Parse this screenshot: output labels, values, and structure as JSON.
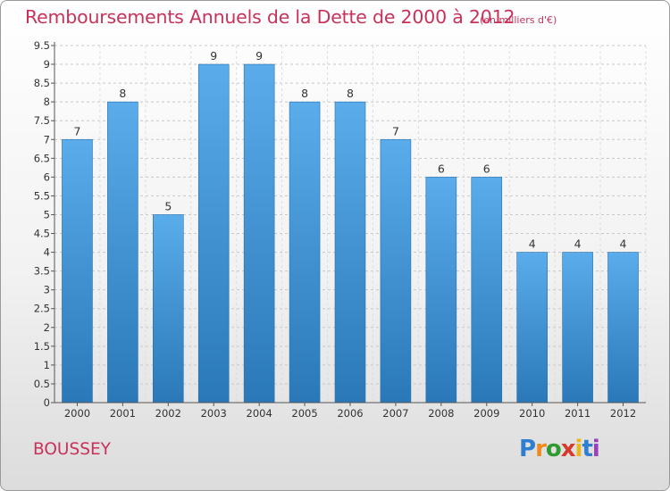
{
  "title": "Remboursements Annuels de la Dette de 2000 à 2012",
  "unit_label": "(en milliers d'€)",
  "place": "BOUSSEY",
  "logo": {
    "letters": [
      "P",
      "r",
      "o",
      "x",
      "i",
      "t",
      "i"
    ],
    "colors": [
      "#2f7fd0",
      "#f08a1c",
      "#2f9a2f",
      "#d63a2a",
      "#e8b81a",
      "#2f7fd0",
      "#9a3fc0"
    ]
  },
  "colors": {
    "bar_light": "#5aaceb",
    "bar_dark": "#2a78b8",
    "title": "#c8325a",
    "grid": "#c8c8c8",
    "axis_text": "#333333"
  },
  "chart_data": {
    "type": "bar",
    "categories": [
      "2000",
      "2001",
      "2002",
      "2003",
      "2004",
      "2005",
      "2006",
      "2007",
      "2008",
      "2009",
      "2010",
      "2011",
      "2012"
    ],
    "values": [
      7,
      8,
      5,
      9,
      9,
      8,
      8,
      7,
      6,
      6,
      4,
      4,
      4
    ],
    "data_labels": [
      "7",
      "8",
      "5",
      "9",
      "9",
      "8",
      "8",
      "7",
      "6",
      "6",
      "4",
      "4",
      "4"
    ],
    "yticks": [
      "0",
      "0.5",
      "1",
      "1.5",
      "2",
      "2.5",
      "3",
      "3.5",
      "4",
      "4.5",
      "5",
      "5.5",
      "6",
      "6.5",
      "7",
      "7.5",
      "8",
      "8.5",
      "9",
      "9.5"
    ],
    "ylim": [
      0,
      9.5
    ],
    "grid": true
  }
}
